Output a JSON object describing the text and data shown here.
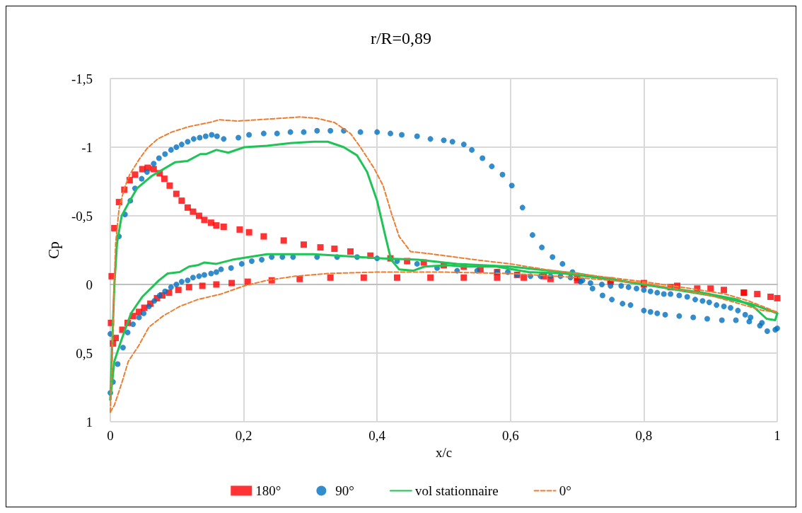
{
  "chart_data": {
    "type": "scatter",
    "title": "r/R=0,89",
    "xlabel": "x/c",
    "ylabel": "Cp",
    "xlim": [
      0,
      1
    ],
    "ylim": [
      1,
      -1.5
    ],
    "xticks": [
      0,
      {
        "value": 0.2,
        "label": "0,2"
      },
      {
        "value": 0.4,
        "label": "0,4"
      },
      {
        "value": 0.6,
        "label": "0,6"
      },
      {
        "value": 0.8,
        "label": "0,8"
      },
      1
    ],
    "yticks": [
      {
        "value": -1.5,
        "label": "-1,5"
      },
      -1,
      {
        "value": -0.5,
        "label": "-0,5"
      },
      0,
      {
        "value": 0.5,
        "label": "0,5"
      },
      1
    ],
    "grid": true,
    "legend": "bottom",
    "series": [
      {
        "name": "180°",
        "marker": "square",
        "color": "#ff0000",
        "x": [
          0.002,
          0.006,
          0.013,
          0.021,
          0.029,
          0.037,
          0.048,
          0.056,
          0.065,
          0.074,
          0.081,
          0.089,
          0.099,
          0.107,
          0.116,
          0.124,
          0.133,
          0.141,
          0.151,
          0.159,
          0.17,
          0.194,
          0.208,
          0.23,
          0.26,
          0.29,
          0.315,
          0.336,
          0.36,
          0.39,
          0.42,
          0.445,
          0.47,
          0.5,
          0.53,
          0.555,
          0.58,
          0.61,
          0.65,
          0.7,
          0.75,
          0.8,
          0.84,
          0.88,
          0.92,
          0.95,
          0.97,
          0.99,
          1.0,
          0.001,
          0.004,
          0.008,
          0.018,
          0.026,
          0.034,
          0.043,
          0.051,
          0.06,
          0.07,
          0.078,
          0.088,
          0.102,
          0.118,
          0.138,
          0.159,
          0.182,
          0.206,
          0.242,
          0.284,
          0.33,
          0.38,
          0.43,
          0.48,
          0.53,
          0.58,
          0.62,
          0.66,
          0.7,
          0.75,
          0.8,
          0.85,
          0.9,
          0.95
        ],
        "values": [
          -0.06,
          -0.41,
          -0.6,
          -0.69,
          -0.76,
          -0.8,
          -0.84,
          -0.85,
          -0.84,
          -0.81,
          -0.77,
          -0.72,
          -0.66,
          -0.61,
          -0.56,
          -0.53,
          -0.5,
          -0.47,
          -0.45,
          -0.43,
          -0.42,
          -0.4,
          -0.38,
          -0.35,
          -0.32,
          -0.29,
          -0.27,
          -0.26,
          -0.24,
          -0.21,
          -0.19,
          -0.17,
          -0.16,
          -0.14,
          -0.13,
          -0.11,
          -0.09,
          -0.07,
          -0.06,
          -0.05,
          -0.03,
          0.0,
          0.02,
          0.03,
          0.04,
          0.06,
          0.07,
          0.09,
          0.1,
          0.28,
          0.43,
          0.39,
          0.33,
          0.28,
          0.23,
          0.2,
          0.17,
          0.14,
          0.1,
          0.08,
          0.06,
          0.04,
          0.02,
          0.01,
          0.0,
          -0.01,
          -0.02,
          -0.03,
          -0.04,
          -0.05,
          -0.05,
          -0.05,
          -0.05,
          -0.05,
          -0.05,
          -0.05,
          -0.04,
          -0.03,
          -0.02,
          -0.01,
          0.01,
          0.03,
          0.06
        ]
      },
      {
        "name": "90°",
        "marker": "circle",
        "color": "#0070c0",
        "x": [
          0.0,
          0.013,
          0.022,
          0.03,
          0.037,
          0.047,
          0.055,
          0.065,
          0.073,
          0.082,
          0.091,
          0.099,
          0.107,
          0.116,
          0.125,
          0.134,
          0.143,
          0.152,
          0.16,
          0.17,
          0.192,
          0.208,
          0.23,
          0.25,
          0.27,
          0.29,
          0.31,
          0.33,
          0.35,
          0.375,
          0.4,
          0.42,
          0.437,
          0.46,
          0.48,
          0.5,
          0.513,
          0.53,
          0.542,
          0.558,
          0.572,
          0.588,
          0.602,
          0.618,
          0.633,
          0.647,
          0.663,
          0.678,
          0.693,
          0.708,
          0.723,
          0.738,
          0.752,
          0.768,
          0.78,
          0.8,
          0.81,
          0.82,
          0.832,
          0.853,
          0.874,
          0.895,
          0.917,
          0.938,
          0.958,
          0.974,
          0.985,
          0.997,
          1.0,
          0.977,
          0.96,
          0.952,
          0.941,
          0.93,
          0.92,
          0.909,
          0.898,
          0.888,
          0.877,
          0.865,
          0.853,
          0.84,
          0.83,
          0.82,
          0.81,
          0.8,
          0.789,
          0.777,
          0.766,
          0.75,
          0.737,
          0.72,
          0.705,
          0.69,
          0.675,
          0.66,
          0.645,
          0.63,
          0.61,
          0.596,
          0.58,
          0.55,
          0.52,
          0.49,
          0.46,
          0.43,
          0.4,
          0.37,
          0.34,
          0.31,
          0.274,
          0.258,
          0.242,
          0.227,
          0.212,
          0.197,
          0.181,
          0.166,
          0.159,
          0.151,
          0.141,
          0.133,
          0.124,
          0.116,
          0.107,
          0.099,
          0.091,
          0.082,
          0.074,
          0.066,
          0.058,
          0.05,
          0.043,
          0.034,
          0.026,
          0.019,
          0.011,
          0.004,
          0.0
        ],
        "values": [
          0.36,
          -0.35,
          -0.51,
          -0.61,
          -0.7,
          -0.77,
          -0.82,
          -0.88,
          -0.92,
          -0.95,
          -0.98,
          -1.0,
          -1.02,
          -1.04,
          -1.06,
          -1.07,
          -1.08,
          -1.09,
          -1.08,
          -1.06,
          -1.07,
          -1.09,
          -1.1,
          -1.1,
          -1.11,
          -1.11,
          -1.12,
          -1.12,
          -1.12,
          -1.11,
          -1.11,
          -1.1,
          -1.09,
          -1.08,
          -1.06,
          -1.05,
          -1.04,
          -1.02,
          -0.98,
          -0.92,
          -0.86,
          -0.8,
          -0.72,
          -0.56,
          -0.36,
          -0.27,
          -0.2,
          -0.15,
          -0.09,
          -0.03,
          0.03,
          0.08,
          0.11,
          0.14,
          0.15,
          0.19,
          0.2,
          0.21,
          0.22,
          0.23,
          0.24,
          0.25,
          0.26,
          0.26,
          0.27,
          0.3,
          0.34,
          0.33,
          0.32,
          0.28,
          0.24,
          0.22,
          0.19,
          0.17,
          0.16,
          0.15,
          0.13,
          0.12,
          0.11,
          0.09,
          0.08,
          0.07,
          0.07,
          0.06,
          0.05,
          0.04,
          0.03,
          0.02,
          0.01,
          0.01,
          0.0,
          -0.01,
          -0.02,
          -0.05,
          -0.06,
          -0.06,
          -0.06,
          -0.06,
          -0.07,
          -0.09,
          -0.09,
          -0.1,
          -0.1,
          -0.12,
          -0.15,
          -0.17,
          -0.19,
          -0.2,
          -0.2,
          -0.2,
          -0.2,
          -0.2,
          -0.2,
          -0.18,
          -0.17,
          -0.15,
          -0.12,
          -0.11,
          -0.09,
          -0.08,
          -0.07,
          -0.06,
          -0.05,
          -0.03,
          -0.02,
          0.0,
          0.02,
          0.05,
          0.08,
          0.12,
          0.16,
          0.21,
          0.24,
          0.29,
          0.35,
          0.46,
          0.58,
          0.71,
          0.79
        ]
      },
      {
        "name": "vol stationnaire",
        "type": "line",
        "marker": "none",
        "line_style": "solid",
        "color": "#1ec455",
        "x": [
          0.0,
          0.003,
          0.006,
          0.01,
          0.017,
          0.027,
          0.04,
          0.062,
          0.097,
          0.116,
          0.135,
          0.144,
          0.159,
          0.177,
          0.201,
          0.235,
          0.27,
          0.305,
          0.326,
          0.35,
          0.37,
          0.385,
          0.4,
          0.412,
          0.421,
          0.433,
          0.454,
          0.471,
          0.506,
          0.531,
          0.579,
          0.627,
          0.68,
          0.73,
          0.8,
          0.888,
          0.94,
          0.964,
          0.984,
          0.997,
          1.0
        ],
        "values": [
          0.84,
          0.41,
          0.01,
          -0.3,
          -0.5,
          -0.59,
          -0.7,
          -0.79,
          -0.89,
          -0.9,
          -0.95,
          -0.95,
          -0.98,
          -0.96,
          -1.0,
          -1.01,
          -1.03,
          -1.04,
          -1.04,
          -1.0,
          -0.94,
          -0.82,
          -0.61,
          -0.36,
          -0.18,
          -0.11,
          -0.1,
          -0.13,
          -0.14,
          -0.13,
          -0.13,
          -0.09,
          -0.08,
          -0.05,
          0.0,
          0.06,
          0.11,
          0.16,
          0.25,
          0.26,
          0.21
        ]
      },
      {
        "type": "line",
        "marker": "none",
        "line_style": "solid",
        "color": "#1ec455",
        "x": [
          0.0,
          0.006,
          0.017,
          0.031,
          0.048,
          0.073,
          0.086,
          0.104,
          0.118,
          0.131,
          0.141,
          0.159,
          0.183,
          0.208,
          0.235,
          0.27,
          0.305,
          0.34,
          0.409,
          0.461,
          0.52,
          0.6,
          0.7,
          0.8,
          0.9,
          0.96,
          1.0
        ],
        "values": [
          0.84,
          0.56,
          0.4,
          0.21,
          0.09,
          -0.03,
          -0.08,
          -0.09,
          -0.13,
          -0.14,
          -0.16,
          -0.15,
          -0.18,
          -0.2,
          -0.22,
          -0.22,
          -0.22,
          -0.21,
          -0.19,
          -0.18,
          -0.15,
          -0.13,
          -0.08,
          0.0,
          0.08,
          0.14,
          0.21
        ]
      },
      {
        "name": "0°",
        "type": "line",
        "marker": "none",
        "line_style": "dashed",
        "color": "#ed7d31",
        "x": [
          0.0,
          0.003,
          0.005,
          0.008,
          0.013,
          0.021,
          0.029,
          0.043,
          0.055,
          0.071,
          0.092,
          0.118,
          0.149,
          0.164,
          0.19,
          0.222,
          0.253,
          0.284,
          0.31,
          0.336,
          0.36,
          0.375,
          0.395,
          0.409,
          0.422,
          0.433,
          0.45,
          0.485,
          0.547,
          0.6,
          0.651,
          0.697,
          0.749,
          0.8,
          0.87,
          0.922,
          0.957,
          0.999
        ],
        "values": [
          0.93,
          0.51,
          0.11,
          -0.3,
          -0.55,
          -0.7,
          -0.8,
          -0.91,
          -0.99,
          -1.06,
          -1.11,
          -1.15,
          -1.18,
          -1.2,
          -1.19,
          -1.2,
          -1.21,
          -1.22,
          -1.21,
          -1.18,
          -1.1,
          -1.0,
          -0.85,
          -0.72,
          -0.51,
          -0.35,
          -0.24,
          -0.22,
          -0.18,
          -0.15,
          -0.11,
          -0.08,
          -0.05,
          -0.02,
          0.03,
          0.07,
          0.12,
          0.2
        ]
      },
      {
        "type": "line",
        "marker": "none",
        "line_style": "dashed",
        "color": "#ed7d31",
        "x": [
          0.0,
          0.006,
          0.017,
          0.027,
          0.042,
          0.058,
          0.079,
          0.104,
          0.131,
          0.166,
          0.201,
          0.235,
          0.277,
          0.326,
          0.4,
          0.5,
          0.6,
          0.7,
          0.8,
          0.9,
          0.95,
          0.978,
          0.999
        ],
        "values": [
          0.93,
          0.88,
          0.72,
          0.56,
          0.45,
          0.31,
          0.23,
          0.16,
          0.11,
          0.07,
          0.01,
          -0.03,
          -0.06,
          -0.08,
          -0.09,
          -0.09,
          -0.08,
          -0.05,
          -0.01,
          0.08,
          0.15,
          0.19,
          0.2
        ]
      }
    ]
  }
}
